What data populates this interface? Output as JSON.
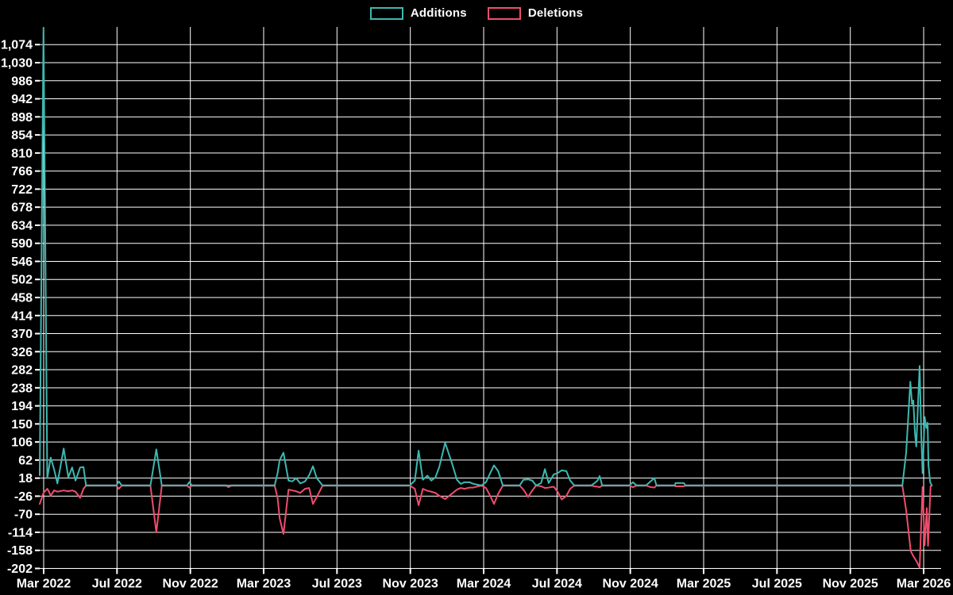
{
  "page": {
    "background": "#000000"
  },
  "legend": {
    "items": [
      {
        "label": "Additions",
        "color": "#3db8b0"
      },
      {
        "label": "Deletions",
        "color": "#ef4d6d"
      }
    ]
  },
  "chart_data": {
    "type": "line",
    "title": "",
    "xlabel": "",
    "ylabel": "",
    "grid": true,
    "legend_position": "top-center",
    "background_color": "#000000",
    "gridline_color": "#ffffff",
    "baseline_overlap_color": "#7e9ba4",
    "x_unit": "weeks since 2022-03-01",
    "x_domain": [
      0,
      214.1
    ],
    "y_domain": [
      -202,
      1117
    ],
    "y_ticks": {
      "min": -202,
      "max": 1074,
      "step": 44
    },
    "x_ticks": [
      {
        "w": 0.94,
        "label": "Mar 2022"
      },
      {
        "w": 18.36,
        "label": "Jul 2022"
      },
      {
        "w": 35.78,
        "label": "Nov 2022"
      },
      {
        "w": 53.19,
        "label": "Mar 2023"
      },
      {
        "w": 70.61,
        "label": "Jul 2023"
      },
      {
        "w": 88.03,
        "label": "Nov 2023"
      },
      {
        "w": 105.45,
        "label": "Mar 2024"
      },
      {
        "w": 122.87,
        "label": "Jul 2024"
      },
      {
        "w": 140.28,
        "label": "Nov 2024"
      },
      {
        "w": 157.7,
        "label": "Mar 2025"
      },
      {
        "w": 175.12,
        "label": "Jul 2025"
      },
      {
        "w": 192.54,
        "label": "Nov 2025"
      },
      {
        "w": 209.96,
        "label": "Mar 2026"
      }
    ],
    "series": [
      {
        "name": "Additions",
        "color": "#3db8b0",
        "points": [
          [
            0,
            25
          ],
          [
            0.9,
            1115
          ],
          [
            1.8,
            18
          ],
          [
            2.6,
            68
          ],
          [
            3.4,
            40
          ],
          [
            4.2,
            5
          ],
          [
            5.7,
            90
          ],
          [
            6.8,
            20
          ],
          [
            7.7,
            44
          ],
          [
            8.5,
            12
          ],
          [
            9.6,
            44
          ],
          [
            10.4,
            45
          ],
          [
            11,
            0
          ],
          [
            18.2,
            0
          ],
          [
            18.8,
            10
          ],
          [
            19.5,
            0
          ],
          [
            26.3,
            0
          ],
          [
            27.7,
            88
          ],
          [
            29,
            0
          ],
          [
            35,
            0
          ],
          [
            35.5,
            8
          ],
          [
            36.2,
            0
          ],
          [
            55.8,
            0
          ],
          [
            56.5,
            30
          ],
          [
            57,
            62
          ],
          [
            57.9,
            80
          ],
          [
            59.1,
            12
          ],
          [
            60,
            10
          ],
          [
            60.9,
            18
          ],
          [
            61.9,
            5
          ],
          [
            63,
            10
          ],
          [
            64,
            25
          ],
          [
            64.9,
            47
          ],
          [
            65.8,
            18
          ],
          [
            67.2,
            0
          ],
          [
            87.9,
            0
          ],
          [
            89.1,
            12
          ],
          [
            90,
            85
          ],
          [
            91,
            14
          ],
          [
            92.1,
            24
          ],
          [
            93,
            12
          ],
          [
            94,
            20
          ],
          [
            94.9,
            45
          ],
          [
            96.3,
            104
          ],
          [
            97.9,
            55
          ],
          [
            99.1,
            14
          ],
          [
            100,
            4
          ],
          [
            100.9,
            8
          ],
          [
            102.1,
            8
          ],
          [
            103,
            4
          ],
          [
            104.9,
            0
          ],
          [
            106,
            8
          ],
          [
            107,
            30
          ],
          [
            107.9,
            49
          ],
          [
            108.9,
            35
          ],
          [
            110,
            0
          ],
          [
            114,
            0
          ],
          [
            114.9,
            14
          ],
          [
            116,
            15
          ],
          [
            117,
            12
          ],
          [
            117.9,
            0
          ],
          [
            119.1,
            6
          ],
          [
            120,
            40
          ],
          [
            120.9,
            6
          ],
          [
            122.1,
            27
          ],
          [
            123,
            30
          ],
          [
            124,
            37
          ],
          [
            125.1,
            35
          ],
          [
            126,
            12
          ],
          [
            127,
            0
          ],
          [
            131,
            0
          ],
          [
            131.8,
            6
          ],
          [
            132.5,
            12
          ],
          [
            133,
            23
          ],
          [
            133.6,
            0
          ],
          [
            140,
            0
          ],
          [
            140.9,
            8
          ],
          [
            141.8,
            0
          ],
          [
            144,
            0
          ],
          [
            145.1,
            10
          ],
          [
            146,
            18
          ],
          [
            146.5,
            0
          ],
          [
            150.9,
            0
          ],
          [
            151,
            6
          ],
          [
            153,
            6
          ],
          [
            153.4,
            0
          ],
          [
            204.9,
            0
          ],
          [
            205.8,
            80
          ],
          [
            206.8,
            253
          ],
          [
            207.2,
            198
          ],
          [
            207.5,
            207
          ],
          [
            207.9,
            127
          ],
          [
            208.2,
            95
          ],
          [
            209,
            291
          ],
          [
            209.4,
            120
          ],
          [
            209.7,
            30
          ],
          [
            210.2,
            167
          ],
          [
            210.6,
            140
          ],
          [
            210.9,
            153
          ],
          [
            211.1,
            50
          ],
          [
            211.5,
            8
          ],
          [
            211.9,
            0
          ]
        ]
      },
      {
        "name": "Deletions",
        "color": "#ef4d6d",
        "points": [
          [
            0,
            -45
          ],
          [
            0.9,
            -18
          ],
          [
            1.8,
            -8
          ],
          [
            2.2,
            -15
          ],
          [
            2.6,
            -25
          ],
          [
            3.4,
            -12
          ],
          [
            4.2,
            -15
          ],
          [
            5.7,
            -12
          ],
          [
            6.8,
            -14
          ],
          [
            7.7,
            -12
          ],
          [
            8.5,
            -15
          ],
          [
            9.6,
            -30
          ],
          [
            10.4,
            -8
          ],
          [
            11,
            0
          ],
          [
            18.2,
            0
          ],
          [
            18.8,
            -8
          ],
          [
            19.5,
            0
          ],
          [
            26.3,
            0
          ],
          [
            27.7,
            -114
          ],
          [
            29,
            0
          ],
          [
            35,
            0
          ],
          [
            35.5,
            -5
          ],
          [
            36.2,
            0
          ],
          [
            44.3,
            0
          ],
          [
            44.8,
            -4
          ],
          [
            45.6,
            0
          ],
          [
            55.8,
            0
          ],
          [
            56.5,
            -30
          ],
          [
            57,
            -80
          ],
          [
            57.9,
            -118
          ],
          [
            59.1,
            -10
          ],
          [
            60,
            -12
          ],
          [
            60.9,
            -14
          ],
          [
            61.9,
            -18
          ],
          [
            63,
            -8
          ],
          [
            64,
            -6
          ],
          [
            64.9,
            -45
          ],
          [
            65.8,
            -28
          ],
          [
            67.2,
            0
          ],
          [
            87.9,
            0
          ],
          [
            89.1,
            -8
          ],
          [
            90,
            -48
          ],
          [
            91,
            -8
          ],
          [
            92.1,
            -13
          ],
          [
            93,
            -15
          ],
          [
            94,
            -18
          ],
          [
            94.9,
            -25
          ],
          [
            96.3,
            -33
          ],
          [
            97.9,
            -20
          ],
          [
            99.1,
            -10
          ],
          [
            100,
            -6
          ],
          [
            100.9,
            -8
          ],
          [
            102.1,
            -5
          ],
          [
            103,
            -5
          ],
          [
            104.9,
            0
          ],
          [
            106,
            -6
          ],
          [
            107,
            -25
          ],
          [
            107.9,
            -45
          ],
          [
            108.9,
            -20
          ],
          [
            110,
            0
          ],
          [
            114,
            0
          ],
          [
            114.9,
            -10
          ],
          [
            116,
            -28
          ],
          [
            117,
            -12
          ],
          [
            117.9,
            0
          ],
          [
            119.1,
            -2
          ],
          [
            120,
            -6
          ],
          [
            120.9,
            -5
          ],
          [
            122.1,
            -3
          ],
          [
            123,
            -15
          ],
          [
            124,
            -34
          ],
          [
            125.1,
            -25
          ],
          [
            126,
            -8
          ],
          [
            127,
            0
          ],
          [
            131,
            0
          ],
          [
            131.8,
            -2
          ],
          [
            132.5,
            -3
          ],
          [
            133,
            -4
          ],
          [
            133.6,
            0
          ],
          [
            140,
            0
          ],
          [
            140.9,
            -4
          ],
          [
            141.8,
            0
          ],
          [
            144,
            0
          ],
          [
            145.1,
            -4
          ],
          [
            146,
            -5
          ],
          [
            146.5,
            0
          ],
          [
            150.9,
            0
          ],
          [
            151,
            -2
          ],
          [
            153,
            -2
          ],
          [
            153.4,
            0
          ],
          [
            204.9,
            0
          ],
          [
            205.8,
            -60
          ],
          [
            206.9,
            -160
          ],
          [
            207.5,
            -172
          ],
          [
            208.3,
            -185
          ],
          [
            209,
            -200
          ],
          [
            209.7,
            -4
          ],
          [
            210.2,
            -145
          ],
          [
            210.7,
            -55
          ],
          [
            211,
            -147
          ],
          [
            211.6,
            -2
          ],
          [
            211.9,
            0
          ]
        ]
      }
    ]
  }
}
